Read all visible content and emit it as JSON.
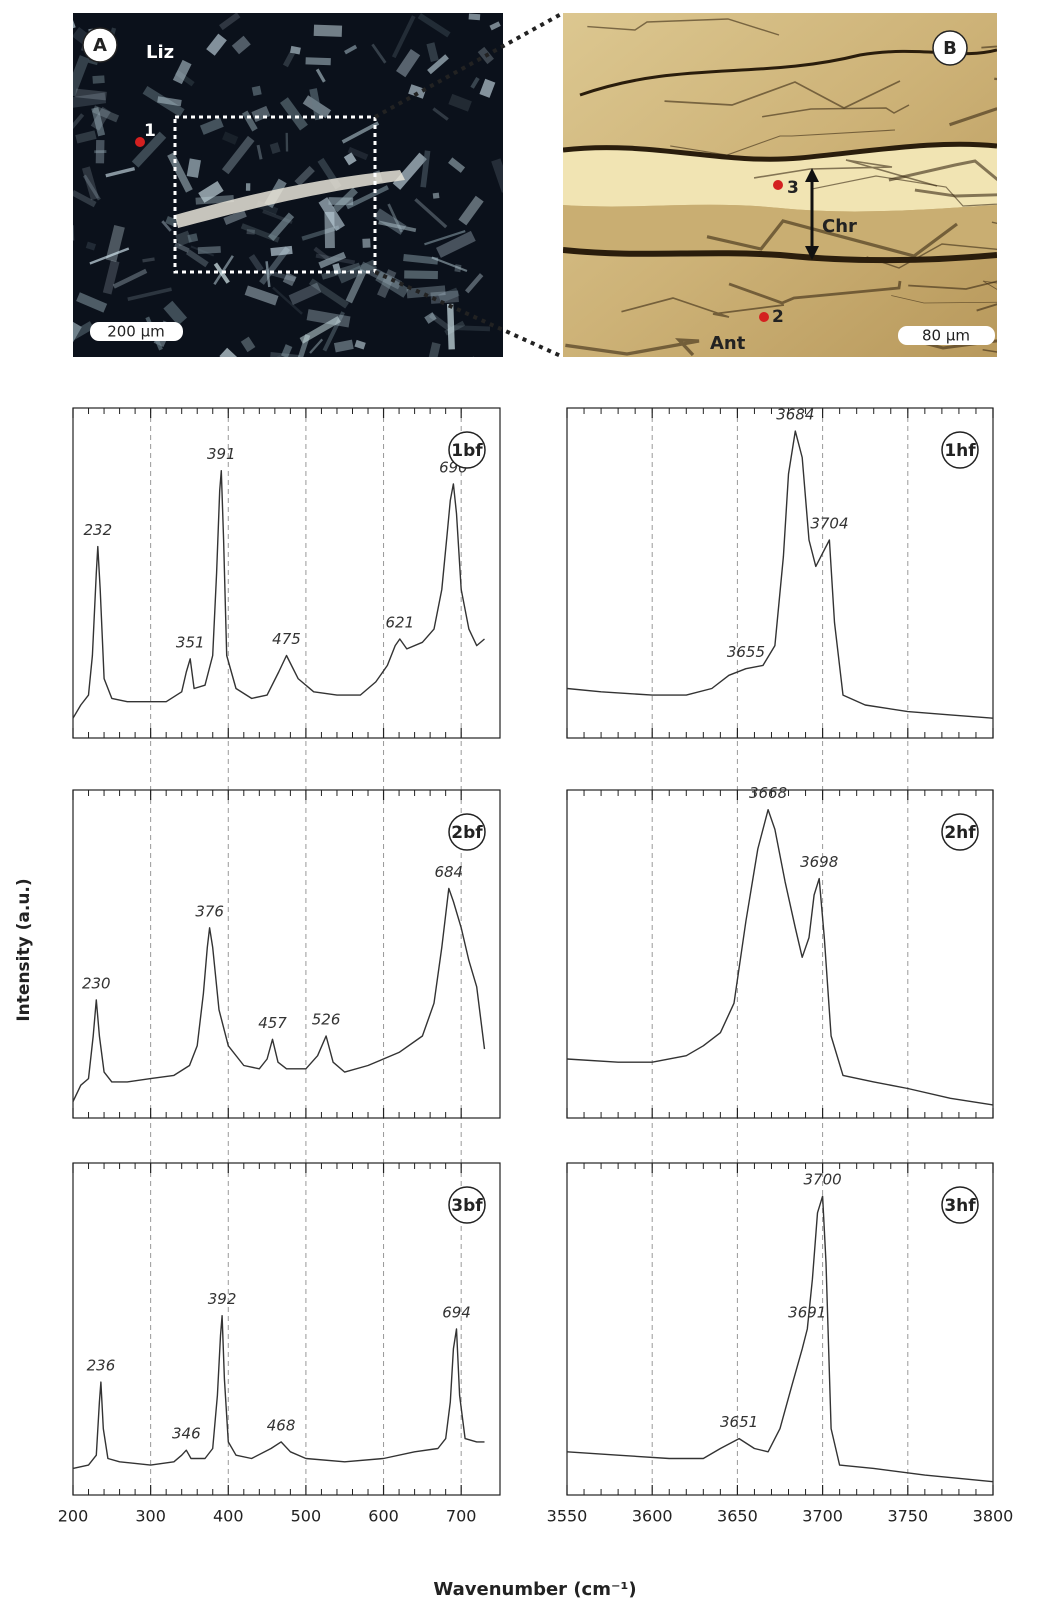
{
  "images": [
    {
      "label": "A",
      "mineral": "Liz",
      "point": 1,
      "scale": "200 µm"
    },
    {
      "label": "B",
      "points": [
        3,
        2
      ],
      "vein": "Chr",
      "host": "Ant",
      "scale": "80 µm"
    }
  ],
  "ylabel": "Intensity (a.u.)",
  "xlabel": "Wavenumber (cm⁻¹)",
  "chart_data": [
    {
      "type": "line",
      "label": "1bf",
      "color": "#333333",
      "xlim": [
        200,
        750
      ],
      "ylim": [
        0,
        100
      ],
      "xticks": [
        200,
        300,
        400,
        500,
        600,
        700
      ],
      "grid": true,
      "x": [
        200,
        210,
        220,
        225,
        230,
        232,
        235,
        240,
        250,
        270,
        300,
        320,
        340,
        346,
        351,
        356,
        370,
        380,
        385,
        389,
        391,
        394,
        398,
        410,
        430,
        450,
        465,
        475,
        490,
        510,
        540,
        570,
        590,
        605,
        615,
        621,
        630,
        650,
        665,
        675,
        682,
        686,
        690,
        694,
        700,
        710,
        720,
        730
      ],
      "values": [
        6,
        10,
        13,
        25,
        50,
        58,
        45,
        18,
        12,
        11,
        11,
        11,
        14,
        20,
        24,
        15,
        16,
        25,
        50,
        75,
        81,
        60,
        25,
        15,
        12,
        13,
        20,
        25,
        18,
        14,
        13,
        13,
        17,
        22,
        28,
        30,
        27,
        29,
        33,
        45,
        62,
        72,
        77,
        68,
        45,
        33,
        28,
        30
      ],
      "peaks": [
        232,
        351,
        391,
        475,
        621,
        690
      ]
    },
    {
      "type": "line",
      "label": "2bf",
      "color": "#333333",
      "xlim": [
        200,
        750
      ],
      "ylim": [
        0,
        100
      ],
      "xticks": [
        200,
        300,
        400,
        500,
        600,
        700
      ],
      "grid": true,
      "x": [
        200,
        210,
        220,
        226,
        230,
        234,
        240,
        250,
        270,
        300,
        330,
        350,
        360,
        368,
        373,
        376,
        380,
        388,
        400,
        420,
        440,
        450,
        457,
        464,
        475,
        500,
        515,
        526,
        535,
        550,
        580,
        620,
        650,
        665,
        675,
        680,
        684,
        690,
        700,
        710,
        720,
        730
      ],
      "values": [
        5,
        10,
        12,
        25,
        36,
        25,
        14,
        11,
        11,
        12,
        13,
        16,
        22,
        38,
        52,
        58,
        52,
        33,
        22,
        16,
        15,
        18,
        24,
        17,
        15,
        15,
        19,
        25,
        17,
        14,
        16,
        20,
        25,
        35,
        52,
        62,
        70,
        66,
        58,
        48,
        40,
        21
      ],
      "peaks": [
        230,
        376,
        457,
        526,
        684
      ]
    },
    {
      "type": "line",
      "label": "3bf",
      "color": "#333333",
      "xlim": [
        200,
        750
      ],
      "ylim": [
        0,
        100
      ],
      "xticks": [
        200,
        300,
        400,
        500,
        600,
        700
      ],
      "grid": true,
      "x": [
        200,
        220,
        230,
        234,
        236,
        239,
        245,
        260,
        300,
        330,
        340,
        346,
        352,
        370,
        380,
        386,
        390,
        392,
        395,
        400,
        410,
        430,
        455,
        468,
        480,
        500,
        550,
        600,
        640,
        670,
        680,
        686,
        690,
        694,
        698,
        705,
        720,
        730
      ],
      "values": [
        8,
        9,
        12,
        28,
        34,
        20,
        11,
        10,
        9,
        10,
        12,
        13.5,
        11,
        11,
        14,
        30,
        48,
        54,
        35,
        16,
        12,
        11,
        14,
        16,
        13,
        11,
        10,
        11,
        13,
        14,
        17,
        28,
        44,
        50,
        30,
        17,
        16,
        16
      ],
      "peaks": [
        236,
        346,
        392,
        468,
        694
      ]
    },
    {
      "type": "line",
      "label": "1hf",
      "color": "#333333",
      "xlim": [
        3550,
        3800
      ],
      "ylim": [
        0,
        100
      ],
      "xticks": [
        3550,
        3600,
        3650,
        3700,
        3750,
        3800
      ],
      "grid": true,
      "x": [
        3550,
        3570,
        3600,
        3620,
        3635,
        3645,
        3655,
        3665,
        3672,
        3677,
        3680,
        3684,
        3688,
        3692,
        3696,
        3700,
        3704,
        3707,
        3712,
        3725,
        3750,
        3775,
        3800
      ],
      "values": [
        15,
        14,
        13,
        13,
        15,
        19,
        21,
        22,
        28,
        55,
        80,
        93,
        85,
        60,
        52,
        56,
        60,
        35,
        13,
        10,
        8,
        7,
        6
      ],
      "peaks": [
        3655,
        3684,
        3704
      ]
    },
    {
      "type": "line",
      "label": "2hf",
      "color": "#333333",
      "xlim": [
        3550,
        3800
      ],
      "ylim": [
        0,
        100
      ],
      "xticks": [
        3550,
        3600,
        3650,
        3700,
        3750,
        3800
      ],
      "grid": true,
      "x": [
        3550,
        3580,
        3600,
        3620,
        3630,
        3640,
        3648,
        3655,
        3662,
        3668,
        3672,
        3678,
        3684,
        3688,
        3692,
        3695,
        3698,
        3701,
        3705,
        3712,
        3730,
        3750,
        3775,
        3800
      ],
      "values": [
        18,
        17,
        17,
        19,
        22,
        26,
        35,
        60,
        82,
        94,
        88,
        72,
        58,
        49,
        55,
        68,
        73,
        55,
        25,
        13,
        11,
        9,
        6,
        4
      ],
      "peaks": [
        3668,
        3698
      ]
    },
    {
      "type": "line",
      "label": "3hf",
      "color": "#333333",
      "xlim": [
        3550,
        3800
      ],
      "ylim": [
        0,
        100
      ],
      "xticks": [
        3550,
        3600,
        3650,
        3700,
        3750,
        3800
      ],
      "grid": true,
      "x": [
        3550,
        3580,
        3610,
        3630,
        3640,
        3651,
        3660,
        3668,
        3675,
        3682,
        3688,
        3691,
        3694,
        3697,
        3700,
        3702,
        3705,
        3710,
        3730,
        3760,
        3800
      ],
      "values": [
        13,
        12,
        11,
        11,
        14,
        17,
        14,
        13,
        20,
        33,
        44,
        50,
        65,
        85,
        90,
        70,
        20,
        9,
        8,
        6,
        4
      ],
      "peaks": [
        3651,
        3691,
        3700
      ]
    }
  ]
}
